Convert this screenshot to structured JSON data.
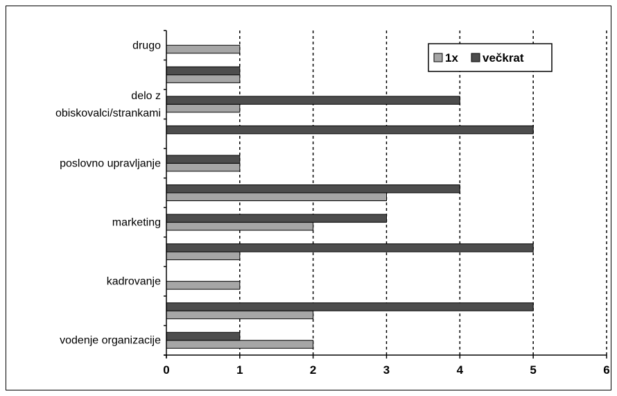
{
  "chart_data": {
    "type": "bar",
    "orientation": "horizontal",
    "xlim": [
      0,
      6
    ],
    "xticks": [
      "0",
      "1",
      "2",
      "3",
      "4",
      "5",
      "6"
    ],
    "grid": "dashed vertical",
    "legend_position": "top-right",
    "category_labels": [
      "vodenje organizacije",
      "",
      "kadrovanje",
      "",
      "marketing",
      "",
      "poslovno upravljanje",
      "",
      "delo z\nobiskovalci/strankami",
      "",
      "drugo"
    ],
    "series": [
      {
        "name": "1x",
        "color": "#a6a6a6",
        "values": [
          2,
          2,
          1,
          1,
          2,
          3,
          1,
          null,
          1,
          1,
          1
        ]
      },
      {
        "name": "večkrat",
        "color": "#4d4d4d",
        "values": [
          1,
          5,
          null,
          5,
          3,
          4,
          1,
          5,
          4,
          1,
          null
        ]
      }
    ]
  }
}
